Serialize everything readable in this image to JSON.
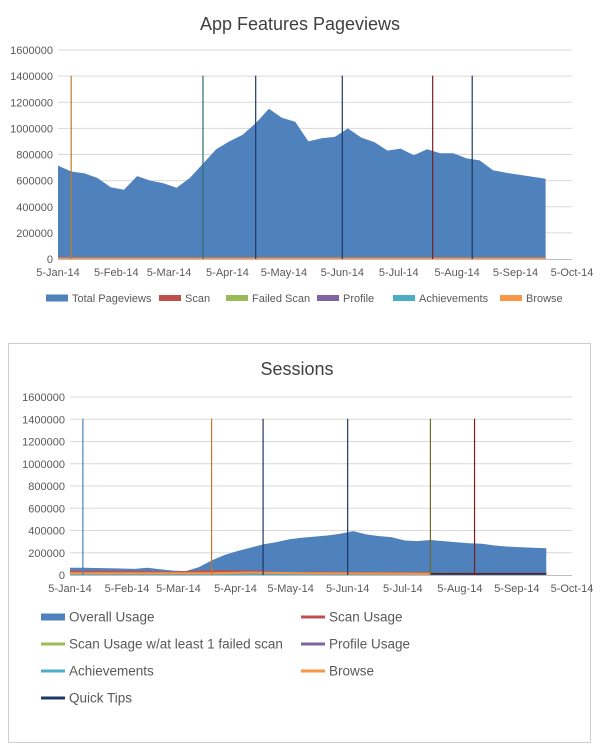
{
  "chart_data": [
    {
      "type": "area",
      "title": "App Features Pageviews",
      "ylim": [
        0,
        1600000
      ],
      "y_ticks": [
        "0",
        "200000",
        "400000",
        "600000",
        "800000",
        "1000000",
        "1200000",
        "1400000",
        "1600000"
      ],
      "x_ticks": [
        "5-Jan-14",
        "5-Feb-14",
        "5-Mar-14",
        "5-Apr-14",
        "5-May-14",
        "5-Jun-14",
        "5-Jul-14",
        "5-Aug-14",
        "5-Sep-14",
        "5-Oct-14"
      ],
      "x_range": [
        "2014-01-05",
        "2014-10-05"
      ],
      "legend": {
        "placement": "bottom",
        "entries": [
          "Total Pageviews",
          "Scan",
          "Failed Scan",
          "Profile",
          "Achievements",
          "Browse"
        ]
      },
      "series": [
        {
          "name": "Total Pageviews",
          "color": "#4f81bd",
          "kind": "area",
          "points": [
            [
              "2014-01-05",
              715000
            ],
            [
              "2014-01-12",
              670000
            ],
            [
              "2014-01-19",
              655000
            ],
            [
              "2014-01-26",
              620000
            ],
            [
              "2014-02-02",
              550000
            ],
            [
              "2014-02-09",
              530000
            ],
            [
              "2014-02-16",
              635000
            ],
            [
              "2014-02-23",
              600000
            ],
            [
              "2014-03-02",
              580000
            ],
            [
              "2014-03-09",
              545000
            ],
            [
              "2014-03-16",
              620000
            ],
            [
              "2014-03-23",
              730000
            ],
            [
              "2014-03-30",
              840000
            ],
            [
              "2014-04-06",
              900000
            ],
            [
              "2014-04-13",
              950000
            ],
            [
              "2014-04-20",
              1040000
            ],
            [
              "2014-04-27",
              1150000
            ],
            [
              "2014-05-04",
              1080000
            ],
            [
              "2014-05-11",
              1050000
            ],
            [
              "2014-05-18",
              900000
            ],
            [
              "2014-05-25",
              925000
            ],
            [
              "2014-06-01",
              935000
            ],
            [
              "2014-06-08",
              1000000
            ],
            [
              "2014-06-15",
              930000
            ],
            [
              "2014-06-22",
              895000
            ],
            [
              "2014-06-29",
              830000
            ],
            [
              "2014-07-06",
              845000
            ],
            [
              "2014-07-13",
              795000
            ],
            [
              "2014-07-20",
              840000
            ],
            [
              "2014-07-27",
              810000
            ],
            [
              "2014-08-03",
              810000
            ],
            [
              "2014-08-10",
              770000
            ],
            [
              "2014-08-17",
              755000
            ],
            [
              "2014-08-24",
              680000
            ],
            [
              "2014-08-31",
              660000
            ],
            [
              "2014-09-07",
              645000
            ],
            [
              "2014-09-14",
              630000
            ],
            [
              "2014-09-21",
              615000
            ]
          ]
        },
        {
          "name": "Scan",
          "color": "#c0504d",
          "kind": "line",
          "points": [
            [
              "2014-01-05",
              5000
            ],
            [
              "2014-09-21",
              5000
            ]
          ]
        },
        {
          "name": "Failed Scan",
          "color": "#9bbb59",
          "kind": "line",
          "points": [
            [
              "2014-01-05",
              2000
            ],
            [
              "2014-09-21",
              2000
            ]
          ]
        },
        {
          "name": "Profile",
          "color": "#8064a2",
          "kind": "line",
          "points": [
            [
              "2014-01-05",
              1000
            ],
            [
              "2014-09-21",
              1000
            ]
          ]
        },
        {
          "name": "Achievements",
          "color": "#4bacc6",
          "kind": "line",
          "points": [
            [
              "2014-01-05",
              1000
            ],
            [
              "2014-09-21",
              1000
            ]
          ]
        },
        {
          "name": "Browse",
          "color": "#f79646",
          "kind": "line",
          "points": [
            [
              "2014-01-05",
              3000
            ],
            [
              "2014-09-21",
              3000
            ]
          ]
        }
      ],
      "vertical_markers": [
        {
          "date": "2014-01-12",
          "color": "#c07a2a"
        },
        {
          "date": "2014-03-23",
          "color": "#2e6d6d"
        },
        {
          "date": "2014-04-20",
          "color": "#1f3864"
        },
        {
          "date": "2014-06-05",
          "color": "#1f3864"
        },
        {
          "date": "2014-07-23",
          "color": "#7a1f1f"
        },
        {
          "date": "2014-08-13",
          "color": "#1f3864"
        }
      ]
    },
    {
      "type": "area",
      "title": "Sessions",
      "ylim": [
        0,
        1600000
      ],
      "y_ticks": [
        "0",
        "200000",
        "400000",
        "600000",
        "800000",
        "1000000",
        "1200000",
        "1400000",
        "1600000"
      ],
      "x_ticks": [
        "5-Jan-14",
        "5-Feb-14",
        "5-Mar-14",
        "5-Apr-14",
        "5-May-14",
        "5-Jun-14",
        "5-Jul-14",
        "5-Aug-14",
        "5-Sep-14",
        "5-Oct-14"
      ],
      "x_range": [
        "2014-01-05",
        "2014-10-05"
      ],
      "legend": {
        "placement": "bottom",
        "entries": [
          "Overall Usage",
          "Scan Usage",
          "Scan Usage w/at least 1 failed scan",
          "Profile Usage",
          "Achievements",
          "Browse",
          "Quick Tips"
        ]
      },
      "series": [
        {
          "name": "Overall Usage",
          "color": "#4f81bd",
          "kind": "area",
          "points": [
            [
              "2014-01-05",
              65000
            ],
            [
              "2014-01-12",
              65000
            ],
            [
              "2014-01-19",
              63000
            ],
            [
              "2014-01-26",
              60000
            ],
            [
              "2014-02-02",
              58000
            ],
            [
              "2014-02-09",
              55000
            ],
            [
              "2014-02-16",
              65000
            ],
            [
              "2014-02-23",
              52000
            ],
            [
              "2014-03-02",
              40000
            ],
            [
              "2014-03-09",
              35000
            ],
            [
              "2014-03-16",
              70000
            ],
            [
              "2014-03-23",
              130000
            ],
            [
              "2014-03-30",
              180000
            ],
            [
              "2014-04-06",
              215000
            ],
            [
              "2014-04-13",
              245000
            ],
            [
              "2014-04-20",
              275000
            ],
            [
              "2014-04-27",
              295000
            ],
            [
              "2014-05-04",
              320000
            ],
            [
              "2014-05-11",
              335000
            ],
            [
              "2014-05-18",
              345000
            ],
            [
              "2014-05-25",
              355000
            ],
            [
              "2014-06-01",
              370000
            ],
            [
              "2014-06-08",
              395000
            ],
            [
              "2014-06-15",
              365000
            ],
            [
              "2014-06-22",
              350000
            ],
            [
              "2014-06-29",
              340000
            ],
            [
              "2014-07-06",
              310000
            ],
            [
              "2014-07-13",
              305000
            ],
            [
              "2014-07-20",
              315000
            ],
            [
              "2014-07-27",
              305000
            ],
            [
              "2014-08-03",
              295000
            ],
            [
              "2014-08-10",
              285000
            ],
            [
              "2014-08-17",
              280000
            ],
            [
              "2014-08-24",
              265000
            ],
            [
              "2014-08-31",
              255000
            ],
            [
              "2014-09-07",
              250000
            ],
            [
              "2014-09-14",
              245000
            ],
            [
              "2014-09-21",
              240000
            ]
          ]
        },
        {
          "name": "Scan Usage",
          "color": "#c0504d",
          "kind": "line",
          "points": [
            [
              "2014-01-05",
              30000
            ],
            [
              "2014-02-09",
              28000
            ],
            [
              "2014-03-02",
              22000
            ],
            [
              "2014-03-23",
              35000
            ],
            [
              "2014-04-20",
              30000
            ],
            [
              "2014-05-04",
              10000
            ],
            [
              "2014-05-18",
              22000
            ],
            [
              "2014-06-08",
              18000
            ],
            [
              "2014-07-13",
              17000
            ],
            [
              "2014-08-10",
              15000
            ],
            [
              "2014-09-21",
              14000
            ]
          ]
        },
        {
          "name": "Scan Usage w/at least 1 failed scan",
          "color": "#9bbb59",
          "kind": "line",
          "points": [
            [
              "2014-01-05",
              8000
            ],
            [
              "2014-09-21",
              6000
            ]
          ]
        },
        {
          "name": "Profile Usage",
          "color": "#8064a2",
          "kind": "line",
          "points": [
            [
              "2014-01-05",
              5000
            ],
            [
              "2014-09-21",
              4000
            ]
          ]
        },
        {
          "name": "Achievements",
          "color": "#4bacc6",
          "kind": "line",
          "points": [
            [
              "2014-01-05",
              3000
            ],
            [
              "2014-09-21",
              3000
            ]
          ]
        },
        {
          "name": "Browse",
          "color": "#f79646",
          "kind": "line",
          "points": [
            [
              "2014-01-05",
              15000
            ],
            [
              "2014-03-23",
              15000
            ],
            [
              "2014-04-13",
              22000
            ],
            [
              "2014-05-11",
              15000
            ],
            [
              "2014-07-20",
              12000
            ],
            [
              "2014-09-21",
              10000
            ]
          ]
        },
        {
          "name": "Quick Tips",
          "color": "#1f3864",
          "kind": "line",
          "points": [
            [
              "2014-07-20",
              0
            ],
            [
              "2014-07-21",
              10000
            ],
            [
              "2014-09-21",
              10000
            ]
          ]
        }
      ],
      "vertical_markers": [
        {
          "date": "2014-01-12",
          "color": "#4f81bd"
        },
        {
          "date": "2014-03-23",
          "color": "#c07a2a"
        },
        {
          "date": "2014-04-20",
          "color": "#1f3864"
        },
        {
          "date": "2014-06-05",
          "color": "#1f3864"
        },
        {
          "date": "2014-07-20",
          "color": "#6b6b2a"
        },
        {
          "date": "2014-08-13",
          "color": "#7a1f1f"
        }
      ]
    }
  ]
}
